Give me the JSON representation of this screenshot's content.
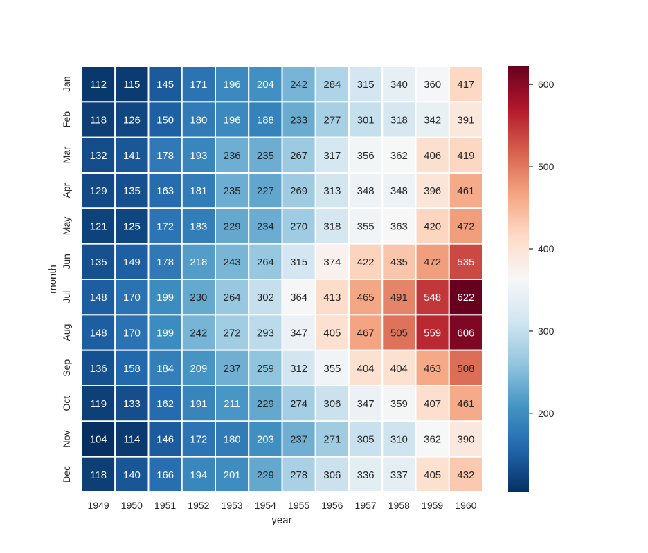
{
  "chart_data": {
    "type": "heatmap",
    "title": "",
    "xlabel": "year",
    "ylabel": "month",
    "x_categories": [
      "1949",
      "1950",
      "1951",
      "1952",
      "1953",
      "1954",
      "1955",
      "1956",
      "1957",
      "1958",
      "1959",
      "1960"
    ],
    "y_categories": [
      "Jan",
      "Feb",
      "Mar",
      "Apr",
      "May",
      "Jun",
      "Jul",
      "Aug",
      "Sep",
      "Oct",
      "Nov",
      "Dec"
    ],
    "values": [
      [
        112,
        115,
        145,
        171,
        196,
        204,
        242,
        284,
        315,
        340,
        360,
        417
      ],
      [
        118,
        126,
        150,
        180,
        196,
        188,
        233,
        277,
        301,
        318,
        342,
        391
      ],
      [
        132,
        141,
        178,
        193,
        236,
        235,
        267,
        317,
        356,
        362,
        406,
        419
      ],
      [
        129,
        135,
        163,
        181,
        235,
        227,
        269,
        313,
        348,
        348,
        396,
        461
      ],
      [
        121,
        125,
        172,
        183,
        229,
        234,
        270,
        318,
        355,
        363,
        420,
        472
      ],
      [
        135,
        149,
        178,
        218,
        243,
        264,
        315,
        374,
        422,
        435,
        472,
        535
      ],
      [
        148,
        170,
        199,
        230,
        264,
        302,
        364,
        413,
        465,
        491,
        548,
        622
      ],
      [
        148,
        170,
        199,
        242,
        272,
        293,
        347,
        405,
        467,
        505,
        559,
        606
      ],
      [
        136,
        158,
        184,
        209,
        237,
        259,
        312,
        355,
        404,
        404,
        463,
        508
      ],
      [
        119,
        133,
        162,
        191,
        211,
        229,
        274,
        306,
        347,
        359,
        407,
        461
      ],
      [
        104,
        114,
        146,
        172,
        180,
        203,
        237,
        271,
        305,
        310,
        362,
        390
      ],
      [
        118,
        140,
        166,
        194,
        201,
        229,
        278,
        306,
        336,
        337,
        405,
        432
      ]
    ],
    "annotations": true,
    "value_format": "d",
    "colormap": "RdBu_r",
    "color_range": [
      104,
      622
    ],
    "colorbar": {
      "ticks": [
        200,
        300,
        400,
        500,
        600
      ],
      "tick_labels": [
        "200",
        "300",
        "400",
        "500",
        "600"
      ],
      "placement": "right"
    },
    "cell_separator_color": "#ffffff",
    "grid": false
  }
}
